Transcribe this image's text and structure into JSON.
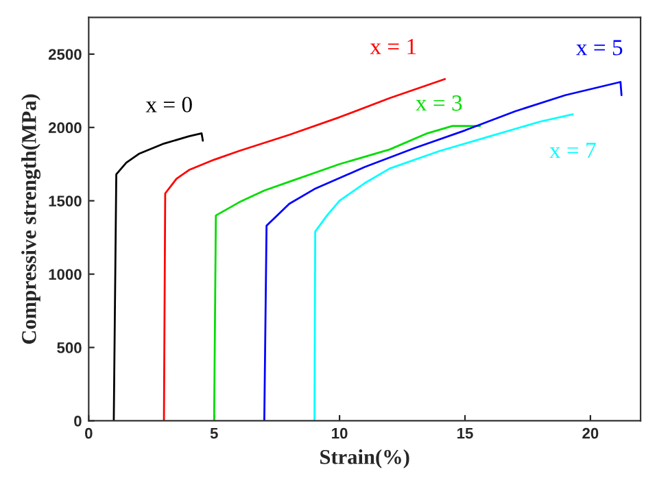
{
  "chart_data": {
    "type": "line",
    "xlabel": "Strain(%)",
    "ylabel": "Compressive strength(MPa)",
    "xlim": [
      0,
      22
    ],
    "ylim": [
      0,
      2750
    ],
    "xticks": [
      0,
      5,
      10,
      15,
      20
    ],
    "yticks": [
      0,
      500,
      1000,
      1500,
      2000,
      2500
    ],
    "grid": false,
    "marker": "none",
    "line_style": "solid",
    "series": [
      {
        "name": "x = 0",
        "color": "#000000",
        "x": [
          1.0,
          1.1,
          1.5,
          2,
          3,
          4,
          4.5,
          4.55
        ],
        "values": [
          0,
          1680,
          1760,
          1820,
          1890,
          1940,
          1960,
          1910
        ]
      },
      {
        "name": "x = 1",
        "color": "#ff0000",
        "x": [
          3.0,
          3.05,
          3.5,
          4,
          5,
          6,
          8,
          10,
          12,
          14.2
        ],
        "values": [
          0,
          1550,
          1650,
          1710,
          1780,
          1840,
          1950,
          2070,
          2200,
          2330
        ]
      },
      {
        "name": "x = 3",
        "color": "#00dd00",
        "x": [
          5.0,
          5.07,
          6,
          7,
          8,
          10,
          12,
          13.5,
          14.5,
          15.6
        ],
        "values": [
          0,
          1400,
          1490,
          1570,
          1630,
          1750,
          1850,
          1960,
          2010,
          2010
        ]
      },
      {
        "name": "x = 5",
        "color": "#0000ff",
        "x": [
          7.0,
          7.09,
          8,
          9,
          11,
          13,
          15,
          17,
          19,
          21.2,
          21.24
        ],
        "values": [
          0,
          1330,
          1480,
          1580,
          1730,
          1860,
          1980,
          2110,
          2220,
          2310,
          2220
        ]
      },
      {
        "name": "x = 7",
        "color": "#00ffff",
        "x": [
          9.0,
          9.03,
          9.5,
          10,
          11,
          12,
          14,
          16,
          18,
          19.3
        ],
        "values": [
          0,
          1290,
          1400,
          1500,
          1620,
          1720,
          1840,
          1940,
          2040,
          2090
        ]
      }
    ]
  }
}
